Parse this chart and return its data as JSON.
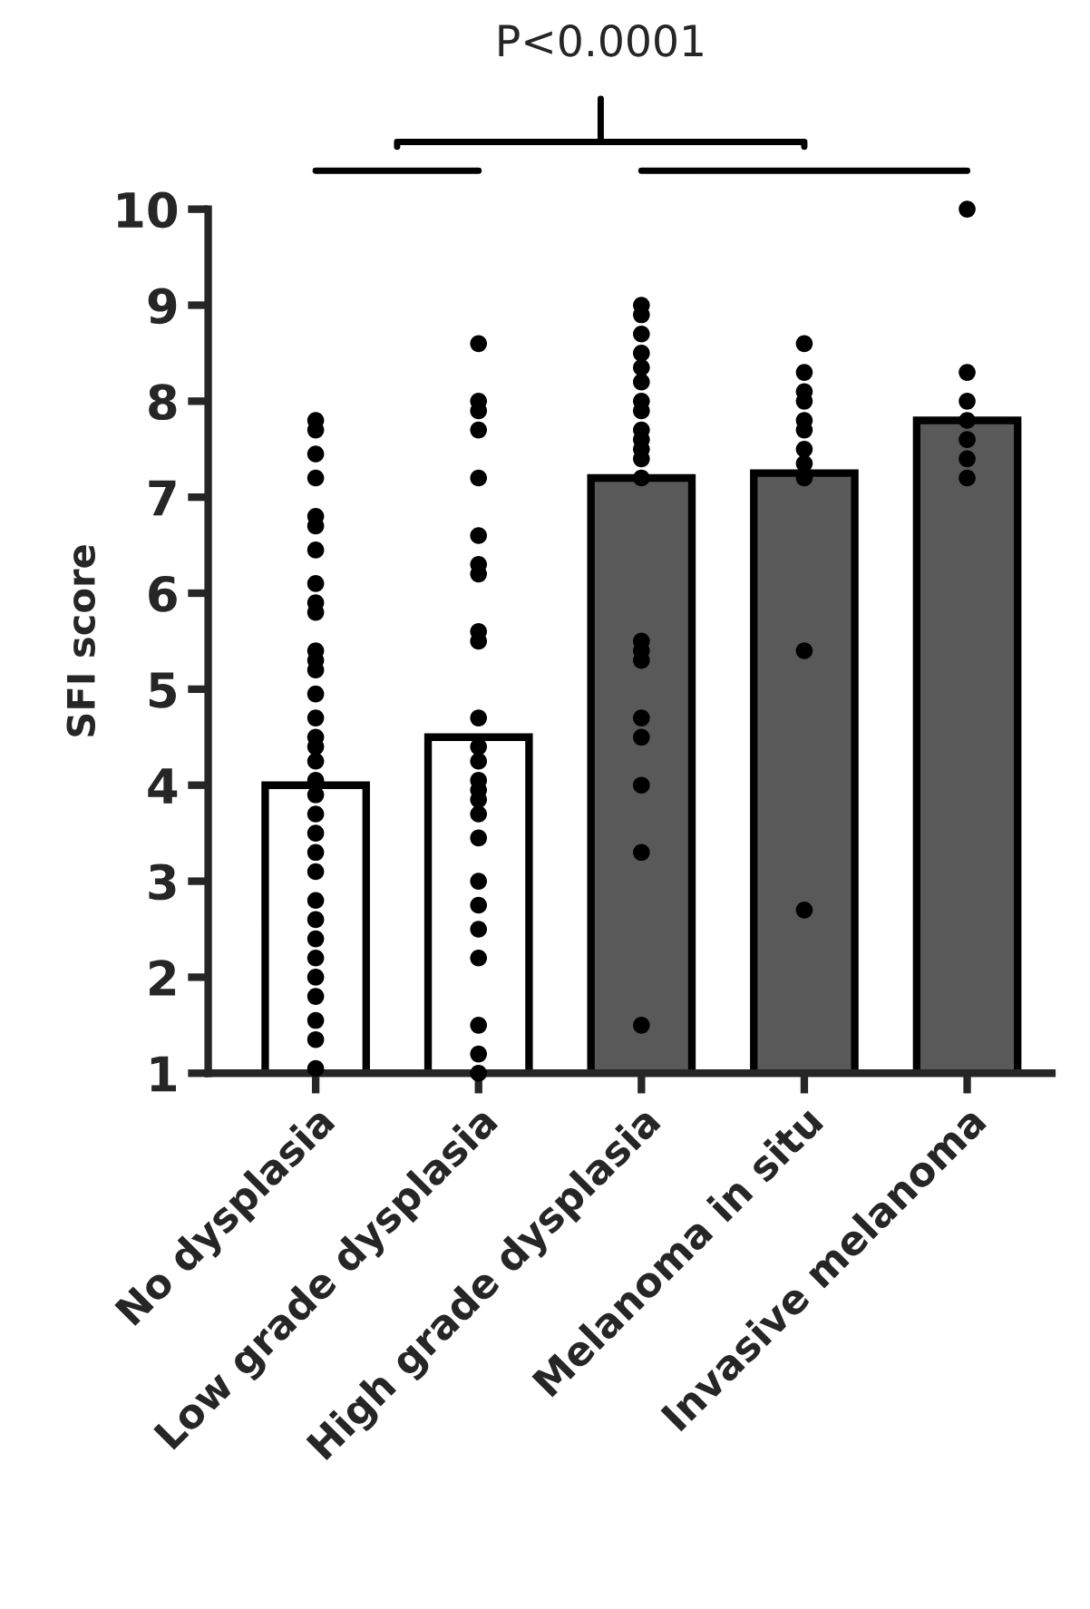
{
  "chart_data": {
    "type": "bar",
    "categories": [
      "No dysplasia",
      "Low grade dysplasia",
      "High grade dysplasia",
      "Melanoma in situ",
      "Invasive melanoma"
    ],
    "ylabel": "SFI score",
    "ylim": [
      1,
      10
    ],
    "yticks": [
      1,
      2,
      3,
      4,
      5,
      6,
      7,
      8,
      9,
      10
    ],
    "grid": false,
    "annotations": [
      "P<0.0001"
    ],
    "series": [
      {
        "values": [
          4.0,
          4.5,
          7.2,
          7.25,
          7.8
        ],
        "colors": [
          "#ffffff",
          "#ffffff",
          "#595959",
          "#595959",
          "#595959"
        ]
      },
      {
        "type": "scatter",
        "color": "#000000",
        "marker": "circle",
        "x": [
          "No dysplasia",
          "No dysplasia",
          "No dysplasia",
          "No dysplasia",
          "No dysplasia",
          "No dysplasia",
          "No dysplasia",
          "No dysplasia",
          "No dysplasia",
          "No dysplasia",
          "No dysplasia",
          "No dysplasia",
          "No dysplasia",
          "No dysplasia",
          "No dysplasia",
          "No dysplasia",
          "No dysplasia",
          "No dysplasia",
          "No dysplasia",
          "No dysplasia",
          "No dysplasia",
          "No dysplasia",
          "No dysplasia",
          "No dysplasia",
          "No dysplasia",
          "No dysplasia",
          "No dysplasia",
          "No dysplasia",
          "No dysplasia",
          "No dysplasia",
          "No dysplasia",
          "No dysplasia",
          "No dysplasia",
          "Low grade dysplasia",
          "Low grade dysplasia",
          "Low grade dysplasia",
          "Low grade dysplasia",
          "Low grade dysplasia",
          "Low grade dysplasia",
          "Low grade dysplasia",
          "Low grade dysplasia",
          "Low grade dysplasia",
          "Low grade dysplasia",
          "Low grade dysplasia",
          "Low grade dysplasia",
          "Low grade dysplasia",
          "Low grade dysplasia",
          "Low grade dysplasia",
          "Low grade dysplasia",
          "Low grade dysplasia",
          "Low grade dysplasia",
          "Low grade dysplasia",
          "Low grade dysplasia",
          "Low grade dysplasia",
          "Low grade dysplasia",
          "Low grade dysplasia",
          "Low grade dysplasia",
          "Low grade dysplasia",
          "High grade dysplasia",
          "High grade dysplasia",
          "High grade dysplasia",
          "High grade dysplasia",
          "High grade dysplasia",
          "High grade dysplasia",
          "High grade dysplasia",
          "High grade dysplasia",
          "High grade dysplasia",
          "High grade dysplasia",
          "High grade dysplasia",
          "High grade dysplasia",
          "High grade dysplasia",
          "High grade dysplasia",
          "High grade dysplasia",
          "High grade dysplasia",
          "High grade dysplasia",
          "High grade dysplasia",
          "High grade dysplasia",
          "High grade dysplasia",
          "High grade dysplasia",
          "Melanoma in situ",
          "Melanoma in situ",
          "Melanoma in situ",
          "Melanoma in situ",
          "Melanoma in situ",
          "Melanoma in situ",
          "Melanoma in situ",
          "Melanoma in situ",
          "Melanoma in situ",
          "Melanoma in situ",
          "Melanoma in situ",
          "Invasive melanoma",
          "Invasive melanoma",
          "Invasive melanoma",
          "Invasive melanoma",
          "Invasive melanoma",
          "Invasive melanoma",
          "Invasive melanoma"
        ],
        "values": [
          7.8,
          7.7,
          7.45,
          7.2,
          6.8,
          6.7,
          6.45,
          6.1,
          5.9,
          5.8,
          5.4,
          5.3,
          5.2,
          4.95,
          4.7,
          4.5,
          4.4,
          4.25,
          4.05,
          3.9,
          3.7,
          3.5,
          3.3,
          3.1,
          2.8,
          2.6,
          2.4,
          2.2,
          2.0,
          1.8,
          1.55,
          1.35,
          1.05,
          8.6,
          8.0,
          7.9,
          7.7,
          7.2,
          6.6,
          6.3,
          6.2,
          5.6,
          5.5,
          4.7,
          4.4,
          4.25,
          4.05,
          3.95,
          3.85,
          3.7,
          3.45,
          3.0,
          2.75,
          2.5,
          2.2,
          1.5,
          1.2,
          1.0,
          9.0,
          8.9,
          8.7,
          8.5,
          8.35,
          8.2,
          8.0,
          7.9,
          7.7,
          7.6,
          7.5,
          7.4,
          7.2,
          5.5,
          5.4,
          5.3,
          4.7,
          4.5,
          4.0,
          3.3,
          1.5,
          8.6,
          8.3,
          8.1,
          8.0,
          7.8,
          7.7,
          7.5,
          7.35,
          7.2,
          5.4,
          2.7,
          10.0,
          8.3,
          8.0,
          7.8,
          7.6,
          7.4,
          7.2
        ]
      }
    ]
  }
}
